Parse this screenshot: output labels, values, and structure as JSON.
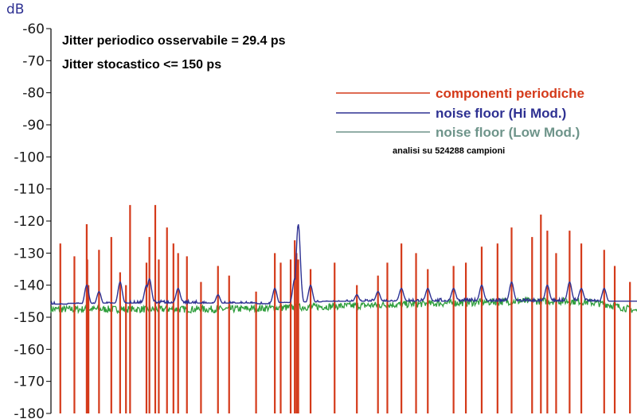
{
  "chart_data": {
    "type": "line",
    "unit_label": "dB",
    "ylim": [
      -180,
      -60
    ],
    "yticks": [
      -60,
      -70,
      -80,
      -90,
      -100,
      -110,
      -120,
      -130,
      -140,
      -150,
      -160,
      -170,
      -180
    ],
    "annotations": [
      "Jitter  periodico osservabile =  29.4 ps",
      "Jitter stocastico <=  150 ps"
    ],
    "footnote": "analisi su 524288 campioni",
    "grid": false,
    "legend_position": "top-right",
    "series": [
      {
        "name": "componenti  periodiche",
        "color": "#d43a1a",
        "kind": "spikes",
        "base": -180,
        "x": [
          0.016,
          0.04,
          0.061,
          0.062,
          0.064,
          0.082,
          0.103,
          0.118,
          0.128,
          0.135,
          0.163,
          0.168,
          0.178,
          0.184,
          0.198,
          0.209,
          0.217,
          0.232,
          0.256,
          0.285,
          0.304,
          0.35,
          0.382,
          0.392,
          0.409,
          0.416,
          0.419,
          0.422,
          0.443,
          0.484,
          0.522,
          0.558,
          0.574,
          0.598,
          0.623,
          0.643,
          0.687,
          0.708,
          0.735,
          0.762,
          0.786,
          0.821,
          0.836,
          0.847,
          0.862,
          0.885,
          0.905,
          0.944,
          0.962,
          0.988
        ],
        "y": [
          -127,
          -131,
          -121,
          -132,
          -140,
          -129,
          -125,
          -136,
          -140,
          -115,
          -133,
          -125,
          -115,
          -132,
          -122,
          -127,
          -130,
          -131,
          -139,
          -134,
          -137,
          -142,
          -130,
          -133,
          -132,
          -126,
          -130,
          -132,
          -135,
          -133,
          -140,
          -137,
          -133,
          -127,
          -130,
          -135,
          -134,
          -133,
          -128,
          -127,
          -122,
          -125,
          -118,
          -123,
          -130,
          -123,
          -127,
          -129,
          -134,
          -139
        ]
      },
      {
        "name": "noise floor (Hi Mod.)",
        "color": "#2e3192",
        "kind": "noise",
        "x": [
          0,
          0.02,
          0.1,
          0.2,
          0.3,
          0.4,
          0.5,
          0.6,
          0.7,
          0.8,
          0.9,
          0.95,
          0.98,
          1
        ],
        "y": [
          -146,
          -146.5,
          -146,
          -145.5,
          -146,
          -146,
          -145.5,
          -145,
          -145,
          -145,
          -145,
          -145.5,
          -146,
          -147
        ],
        "peaks": [
          {
            "x": 0.061,
            "y": -140
          },
          {
            "x": 0.082,
            "y": -142
          },
          {
            "x": 0.118,
            "y": -139
          },
          {
            "x": 0.163,
            "y": -140
          },
          {
            "x": 0.168,
            "y": -138
          },
          {
            "x": 0.217,
            "y": -141
          },
          {
            "x": 0.285,
            "y": -143
          },
          {
            "x": 0.382,
            "y": -141
          },
          {
            "x": 0.416,
            "y": -138
          },
          {
            "x": 0.422,
            "y": -121
          },
          {
            "x": 0.443,
            "y": -140
          },
          {
            "x": 0.522,
            "y": -143
          },
          {
            "x": 0.558,
            "y": -142
          },
          {
            "x": 0.598,
            "y": -141
          },
          {
            "x": 0.643,
            "y": -141
          },
          {
            "x": 0.687,
            "y": -141
          },
          {
            "x": 0.735,
            "y": -140
          },
          {
            "x": 0.786,
            "y": -139
          },
          {
            "x": 0.847,
            "y": -140
          },
          {
            "x": 0.885,
            "y": -139
          },
          {
            "x": 0.905,
            "y": -141
          },
          {
            "x": 0.944,
            "y": -141
          }
        ]
      },
      {
        "name": "noise floor (Low Mod.)",
        "color": "#2f9e3c",
        "legend_text_color": "#6e948a",
        "kind": "noise",
        "x": [
          0,
          0.1,
          0.2,
          0.3,
          0.4,
          0.5,
          0.6,
          0.7,
          0.8,
          0.9,
          0.95,
          1
        ],
        "y": [
          -147.5,
          -147.5,
          -147.5,
          -147.5,
          -147,
          -146.5,
          -146,
          -145.5,
          -145,
          -145,
          -146,
          -148
        ],
        "peaks": []
      }
    ]
  }
}
